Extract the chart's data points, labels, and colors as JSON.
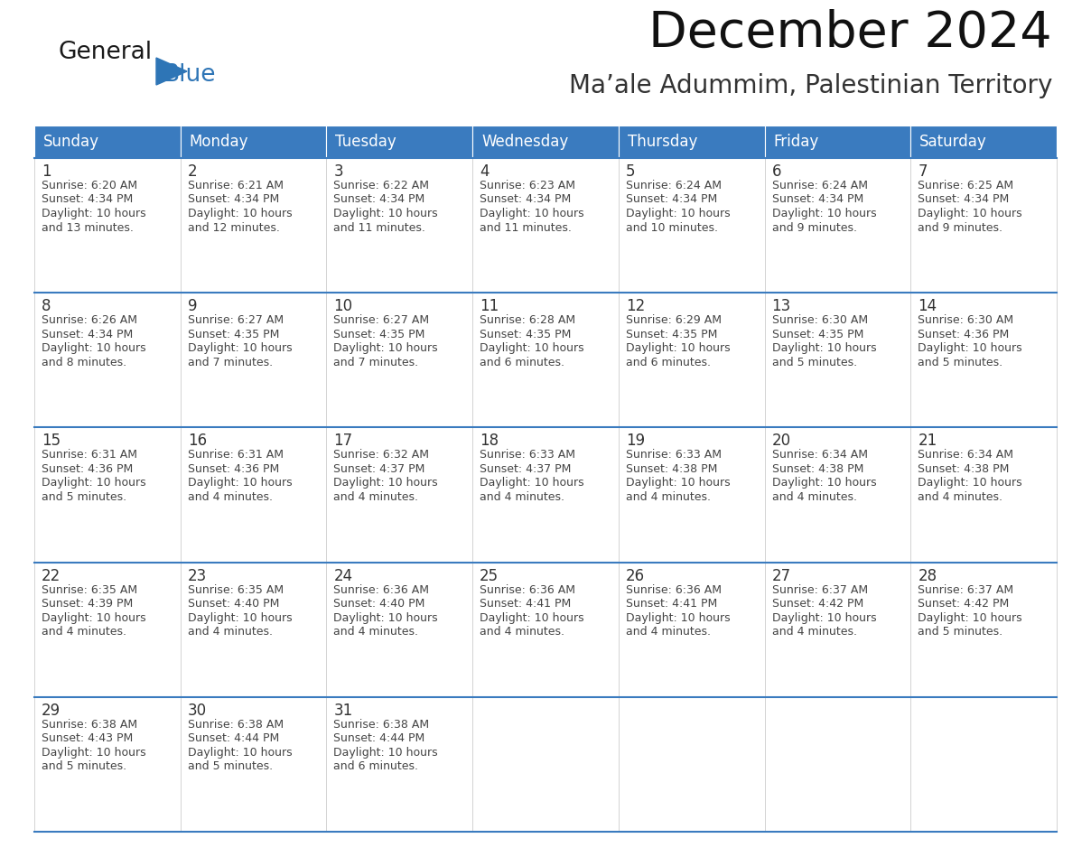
{
  "title": "December 2024",
  "subtitle": "Ma’ale Adummim, Palestinian Territory",
  "days_of_week": [
    "Sunday",
    "Monday",
    "Tuesday",
    "Wednesday",
    "Thursday",
    "Friday",
    "Saturday"
  ],
  "header_bg": "#3a7bbf",
  "header_text": "#FFFFFF",
  "row_border_color": "#3a7bbf",
  "day_num_color": "#333333",
  "cell_text_color": "#444444",
  "bg_color": "#FFFFFF",
  "alt_row_bg": "#f0f4f8",
  "logo_general_color": "#1a1a1a",
  "logo_blue_color": "#2E75B6",
  "calendar_data": [
    [
      {
        "day": 1,
        "sunrise": "6:20 AM",
        "sunset": "4:34 PM",
        "daylight_hrs": "10 hours",
        "daylight_min": "and 13 minutes."
      },
      {
        "day": 2,
        "sunrise": "6:21 AM",
        "sunset": "4:34 PM",
        "daylight_hrs": "10 hours",
        "daylight_min": "and 12 minutes."
      },
      {
        "day": 3,
        "sunrise": "6:22 AM",
        "sunset": "4:34 PM",
        "daylight_hrs": "10 hours",
        "daylight_min": "and 11 minutes."
      },
      {
        "day": 4,
        "sunrise": "6:23 AM",
        "sunset": "4:34 PM",
        "daylight_hrs": "10 hours",
        "daylight_min": "and 11 minutes."
      },
      {
        "day": 5,
        "sunrise": "6:24 AM",
        "sunset": "4:34 PM",
        "daylight_hrs": "10 hours",
        "daylight_min": "and 10 minutes."
      },
      {
        "day": 6,
        "sunrise": "6:24 AM",
        "sunset": "4:34 PM",
        "daylight_hrs": "10 hours",
        "daylight_min": "and 9 minutes."
      },
      {
        "day": 7,
        "sunrise": "6:25 AM",
        "sunset": "4:34 PM",
        "daylight_hrs": "10 hours",
        "daylight_min": "and 9 minutes."
      }
    ],
    [
      {
        "day": 8,
        "sunrise": "6:26 AM",
        "sunset": "4:34 PM",
        "daylight_hrs": "10 hours",
        "daylight_min": "and 8 minutes."
      },
      {
        "day": 9,
        "sunrise": "6:27 AM",
        "sunset": "4:35 PM",
        "daylight_hrs": "10 hours",
        "daylight_min": "and 7 minutes."
      },
      {
        "day": 10,
        "sunrise": "6:27 AM",
        "sunset": "4:35 PM",
        "daylight_hrs": "10 hours",
        "daylight_min": "and 7 minutes."
      },
      {
        "day": 11,
        "sunrise": "6:28 AM",
        "sunset": "4:35 PM",
        "daylight_hrs": "10 hours",
        "daylight_min": "and 6 minutes."
      },
      {
        "day": 12,
        "sunrise": "6:29 AM",
        "sunset": "4:35 PM",
        "daylight_hrs": "10 hours",
        "daylight_min": "and 6 minutes."
      },
      {
        "day": 13,
        "sunrise": "6:30 AM",
        "sunset": "4:35 PM",
        "daylight_hrs": "10 hours",
        "daylight_min": "and 5 minutes."
      },
      {
        "day": 14,
        "sunrise": "6:30 AM",
        "sunset": "4:36 PM",
        "daylight_hrs": "10 hours",
        "daylight_min": "and 5 minutes."
      }
    ],
    [
      {
        "day": 15,
        "sunrise": "6:31 AM",
        "sunset": "4:36 PM",
        "daylight_hrs": "10 hours",
        "daylight_min": "and 5 minutes."
      },
      {
        "day": 16,
        "sunrise": "6:31 AM",
        "sunset": "4:36 PM",
        "daylight_hrs": "10 hours",
        "daylight_min": "and 4 minutes."
      },
      {
        "day": 17,
        "sunrise": "6:32 AM",
        "sunset": "4:37 PM",
        "daylight_hrs": "10 hours",
        "daylight_min": "and 4 minutes."
      },
      {
        "day": 18,
        "sunrise": "6:33 AM",
        "sunset": "4:37 PM",
        "daylight_hrs": "10 hours",
        "daylight_min": "and 4 minutes."
      },
      {
        "day": 19,
        "sunrise": "6:33 AM",
        "sunset": "4:38 PM",
        "daylight_hrs": "10 hours",
        "daylight_min": "and 4 minutes."
      },
      {
        "day": 20,
        "sunrise": "6:34 AM",
        "sunset": "4:38 PM",
        "daylight_hrs": "10 hours",
        "daylight_min": "and 4 minutes."
      },
      {
        "day": 21,
        "sunrise": "6:34 AM",
        "sunset": "4:38 PM",
        "daylight_hrs": "10 hours",
        "daylight_min": "and 4 minutes."
      }
    ],
    [
      {
        "day": 22,
        "sunrise": "6:35 AM",
        "sunset": "4:39 PM",
        "daylight_hrs": "10 hours",
        "daylight_min": "and 4 minutes."
      },
      {
        "day": 23,
        "sunrise": "6:35 AM",
        "sunset": "4:40 PM",
        "daylight_hrs": "10 hours",
        "daylight_min": "and 4 minutes."
      },
      {
        "day": 24,
        "sunrise": "6:36 AM",
        "sunset": "4:40 PM",
        "daylight_hrs": "10 hours",
        "daylight_min": "and 4 minutes."
      },
      {
        "day": 25,
        "sunrise": "6:36 AM",
        "sunset": "4:41 PM",
        "daylight_hrs": "10 hours",
        "daylight_min": "and 4 minutes."
      },
      {
        "day": 26,
        "sunrise": "6:36 AM",
        "sunset": "4:41 PM",
        "daylight_hrs": "10 hours",
        "daylight_min": "and 4 minutes."
      },
      {
        "day": 27,
        "sunrise": "6:37 AM",
        "sunset": "4:42 PM",
        "daylight_hrs": "10 hours",
        "daylight_min": "and 4 minutes."
      },
      {
        "day": 28,
        "sunrise": "6:37 AM",
        "sunset": "4:42 PM",
        "daylight_hrs": "10 hours",
        "daylight_min": "and 5 minutes."
      }
    ],
    [
      {
        "day": 29,
        "sunrise": "6:38 AM",
        "sunset": "4:43 PM",
        "daylight_hrs": "10 hours",
        "daylight_min": "and 5 minutes."
      },
      {
        "day": 30,
        "sunrise": "6:38 AM",
        "sunset": "4:44 PM",
        "daylight_hrs": "10 hours",
        "daylight_min": "and 5 minutes."
      },
      {
        "day": 31,
        "sunrise": "6:38 AM",
        "sunset": "4:44 PM",
        "daylight_hrs": "10 hours",
        "daylight_min": "and 6 minutes."
      },
      null,
      null,
      null,
      null
    ]
  ]
}
